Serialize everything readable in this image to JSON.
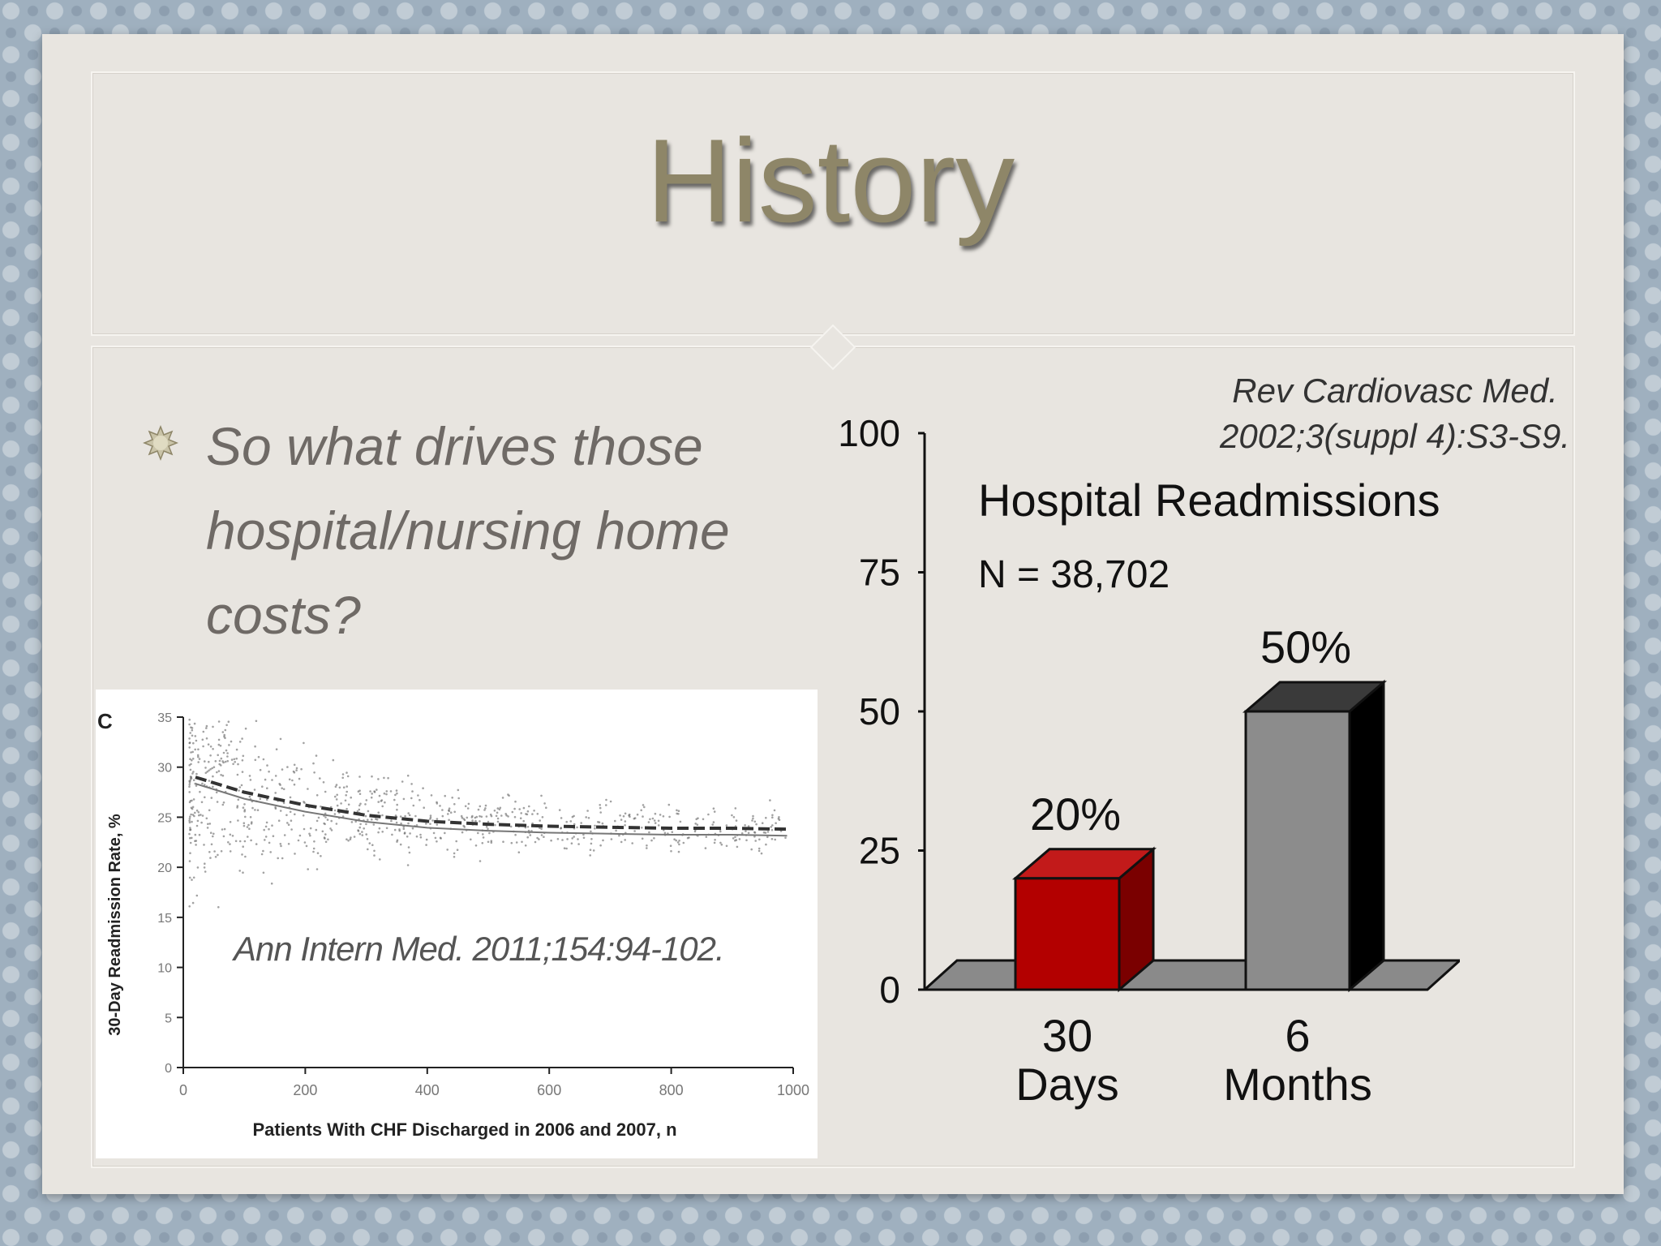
{
  "slide": {
    "title": "History",
    "bullet": "So what drives those hospital/nursing home costs?",
    "citation_right": "Rev Cardiovasc Med. 2002;3(suppl 4):S3-S9.",
    "scatter_citation": "Ann Intern Med. 2011;154:94-102."
  },
  "chart_data": [
    {
      "type": "bar",
      "title": "Hospital Readmissions",
      "subtitle": "N = 38,702",
      "categories": [
        "30 Days",
        "6 Months"
      ],
      "category_lines": [
        [
          "30",
          "Days"
        ],
        [
          "6",
          "Months"
        ]
      ],
      "values": [
        20,
        50
      ],
      "data_labels": [
        "20%",
        "50%"
      ],
      "colors": [
        "#b30000",
        "#8c8c8c"
      ],
      "ylim": [
        0,
        100
      ],
      "yticks": [
        0,
        25,
        50,
        75,
        100
      ],
      "xlabel": "",
      "ylabel": "",
      "style": "3d"
    },
    {
      "type": "scatter",
      "panel_label": "C",
      "xlabel": "Patients With CHF Discharged in 2006 and 2007, n",
      "ylabel": "30-Day Readmission Rate, %",
      "xlim": [
        0,
        1000
      ],
      "ylim": [
        0,
        35
      ],
      "xticks": [
        0,
        200,
        400,
        600,
        800,
        1000
      ],
      "yticks": [
        0,
        5,
        10,
        15,
        20,
        25,
        30,
        35
      ],
      "trend": {
        "x": [
          20,
          100,
          200,
          300,
          400,
          500,
          600,
          700,
          800,
          900,
          990
        ],
        "y": [
          29,
          27.5,
          26.2,
          25.2,
          24.6,
          24.3,
          24.1,
          24.0,
          23.9,
          23.9,
          23.8
        ]
      }
    }
  ]
}
